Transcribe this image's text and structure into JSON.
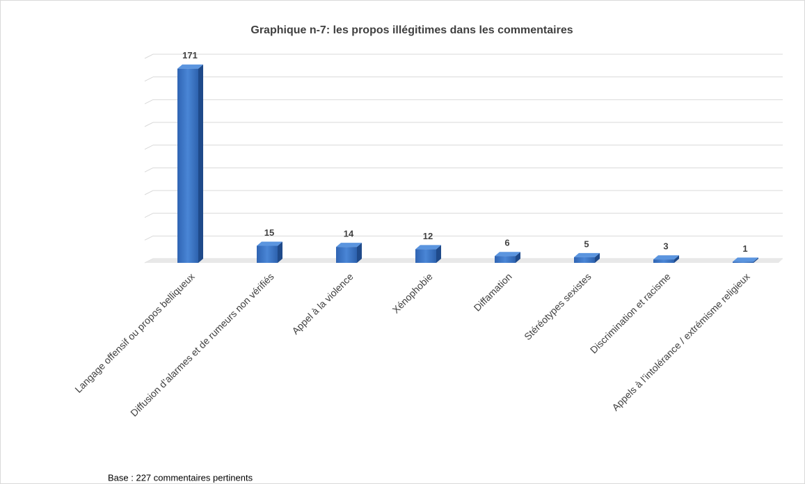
{
  "chart_data": {
    "type": "bar3d",
    "title": "Graphique n-7: les propos illégitimes dans les commentaires",
    "annotation": "Base : 227 commentaires pertinents",
    "categories": [
      "Langage offensif ou propos belliqueux",
      "Diffusion d’alarmes et de rumeurs non vérifiés",
      "Appel à la violence",
      "Xénophobie",
      "Diffamation",
      "Stéréotypes sexistes",
      "Discrimination et racisme",
      "Appels à l’intolérance / extrémisme religieux"
    ],
    "values": [
      171,
      15,
      14,
      12,
      6,
      5,
      3,
      1
    ],
    "color": "#3a72c4",
    "ylim": [
      0,
      180
    ],
    "yticks": [
      0,
      20,
      40,
      60,
      80,
      100,
      120,
      140,
      160,
      180
    ],
    "grid": true
  }
}
